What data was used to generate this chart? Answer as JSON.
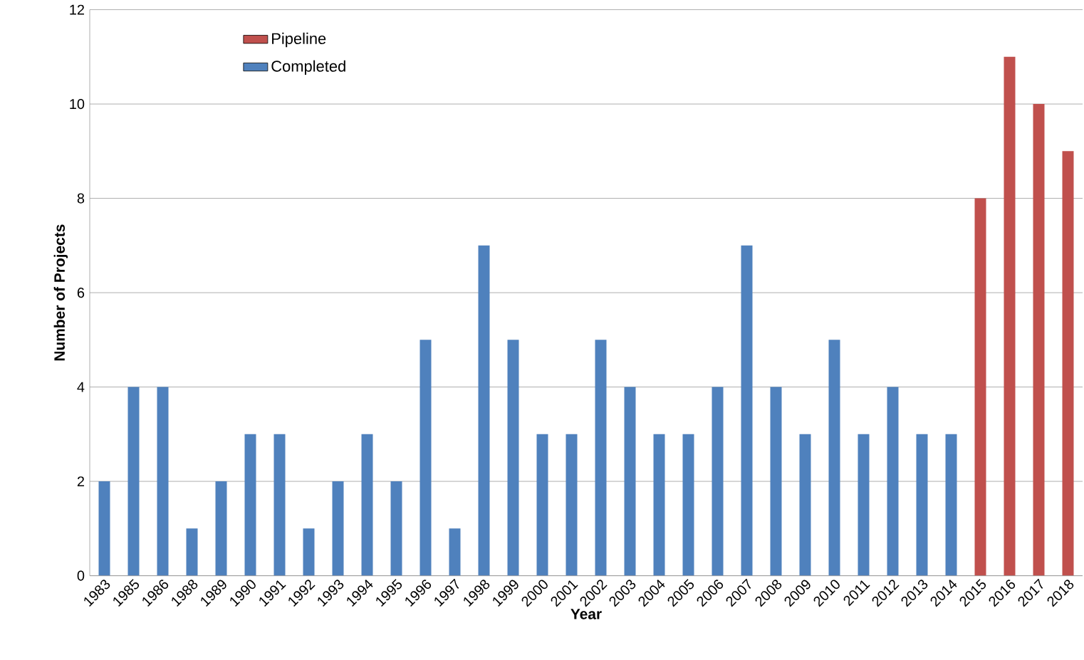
{
  "chart_data": {
    "type": "bar",
    "xlabel": "Year",
    "ylabel": "Number of Projects",
    "categories": [
      "1983",
      "1985",
      "1986",
      "1988",
      "1989",
      "1990",
      "1991",
      "1992",
      "1993",
      "1994",
      "1995",
      "1996",
      "1997",
      "1998",
      "1999",
      "2000",
      "2001",
      "2002",
      "2003",
      "2004",
      "2005",
      "2006",
      "2007",
      "2008",
      "2009",
      "2010",
      "2011",
      "2012",
      "2013",
      "2014",
      "2015",
      "2016",
      "2017",
      "2018"
    ],
    "series": [
      {
        "name": "Pipeline",
        "color": "#c0504d",
        "values": [
          null,
          null,
          null,
          null,
          null,
          null,
          null,
          null,
          null,
          null,
          null,
          null,
          null,
          null,
          null,
          null,
          null,
          null,
          null,
          null,
          null,
          null,
          null,
          null,
          null,
          null,
          null,
          null,
          null,
          null,
          8,
          11,
          10,
          9
        ]
      },
      {
        "name": "Completed",
        "color": "#4f81bd",
        "values": [
          2,
          4,
          4,
          1,
          2,
          3,
          3,
          1,
          2,
          3,
          2,
          5,
          1,
          7,
          5,
          3,
          3,
          5,
          4,
          3,
          3,
          4,
          7,
          4,
          3,
          5,
          3,
          4,
          3,
          3,
          null,
          null,
          null,
          null
        ]
      }
    ],
    "ylim": [
      0,
      12
    ],
    "yticks": [
      0,
      2,
      4,
      6,
      8,
      10,
      12
    ],
    "grid": "y",
    "legend": "top left"
  }
}
